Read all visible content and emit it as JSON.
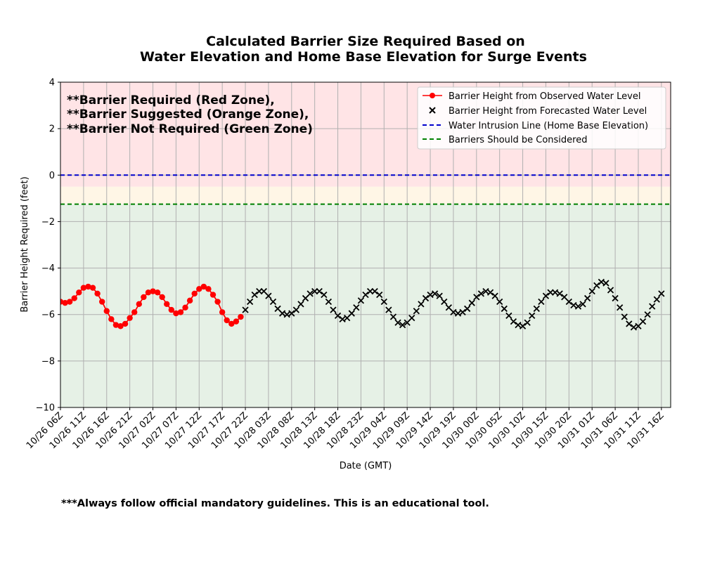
{
  "chart_data": {
    "type": "line",
    "title": [
      "Calculated Barrier Size Required Based on",
      "Water Elevation and Home Base Elevation for Surge Events"
    ],
    "xlabel": "Date (GMT)",
    "ylabel": "Barrier Height Required (feet)",
    "ylim": [
      -10,
      4
    ],
    "yticks": [
      -10,
      -8,
      -6,
      -4,
      -2,
      0,
      2,
      4
    ],
    "x_unit": "hours",
    "xlim": [
      0,
      132
    ],
    "x_tick_hours": [
      0,
      5,
      10,
      15,
      20,
      25,
      30,
      35,
      40,
      45,
      50,
      55,
      60,
      65,
      70,
      75,
      80,
      85,
      90,
      95,
      100,
      105,
      110,
      115,
      120,
      125,
      130
    ],
    "x_tick_labels": [
      "10/26 06Z",
      "10/26 11Z",
      "10/26 16Z",
      "10/26 21Z",
      "10/27 02Z",
      "10/27 07Z",
      "10/27 12Z",
      "10/27 17Z",
      "10/27 22Z",
      "10/28 03Z",
      "10/28 08Z",
      "10/28 13Z",
      "10/28 18Z",
      "10/28 23Z",
      "10/29 04Z",
      "10/29 09Z",
      "10/29 14Z",
      "10/29 19Z",
      "10/30 00Z",
      "10/30 05Z",
      "10/30 10Z",
      "10/30 15Z",
      "10/30 20Z",
      "10/31 01Z",
      "10/31 06Z",
      "10/31 11Z",
      "10/31 16Z"
    ],
    "grid": true,
    "zones": [
      {
        "name": "Barrier Required",
        "color": "#ffe4e6",
        "y0": -0.5,
        "y1": 4
      },
      {
        "name": "Barrier Suggested",
        "color": "#fff6e6",
        "y0": -1.25,
        "y1": -0.5
      },
      {
        "name": "Barrier Not Required",
        "color": "#e6f1e6",
        "y0": -10,
        "y1": -1.25
      }
    ],
    "hlines": [
      {
        "name": "Water Intrusion Line (Home Base Elevation)",
        "y": 0,
        "color": "#0000cc",
        "style": "dashed"
      },
      {
        "name": "Barriers Should be Considered",
        "y": -1.25,
        "color": "#008000",
        "style": "dashed"
      }
    ],
    "series": [
      {
        "name": "Barrier Height from Observed Water Level",
        "color": "#ff0000",
        "marker": "circle",
        "line": true,
        "x_start_hour": -5,
        "x_step_hours": 1,
        "values": [
          -5.3,
          -5.15,
          -5.05,
          -5.15,
          -5.35,
          -5.45,
          -5.5,
          -5.45,
          -5.3,
          -5.05,
          -4.85,
          -4.8,
          -4.85,
          -5.1,
          -5.45,
          -5.85,
          -6.2,
          -6.45,
          -6.5,
          -6.4,
          -6.15,
          -5.9,
          -5.55,
          -5.25,
          -5.05,
          -5.0,
          -5.05,
          -5.25,
          -5.55,
          -5.8,
          -5.95,
          -5.9,
          -5.7,
          -5.4,
          -5.1,
          -4.9,
          -4.8,
          -4.9,
          -5.15,
          -5.45,
          -5.9,
          -6.25,
          -6.4,
          -6.3,
          -6.1
        ]
      },
      {
        "name": "Barrier Height from Forecasted Water Level",
        "color": "#000000",
        "marker": "x",
        "line": false,
        "x_start_hour": 40,
        "x_step_hours": 1,
        "values": [
          -5.8,
          -5.45,
          -5.15,
          -5.0,
          -5.0,
          -5.2,
          -5.45,
          -5.75,
          -5.95,
          -6.0,
          -5.95,
          -5.8,
          -5.55,
          -5.3,
          -5.1,
          -5.0,
          -5.0,
          -5.15,
          -5.45,
          -5.8,
          -6.05,
          -6.2,
          -6.15,
          -5.95,
          -5.7,
          -5.4,
          -5.15,
          -5.0,
          -5.0,
          -5.15,
          -5.45,
          -5.8,
          -6.1,
          -6.35,
          -6.45,
          -6.35,
          -6.15,
          -5.85,
          -5.55,
          -5.3,
          -5.15,
          -5.1,
          -5.2,
          -5.45,
          -5.7,
          -5.9,
          -5.95,
          -5.9,
          -5.75,
          -5.5,
          -5.25,
          -5.1,
          -5.0,
          -5.05,
          -5.2,
          -5.45,
          -5.75,
          -6.05,
          -6.3,
          -6.45,
          -6.5,
          -6.35,
          -6.05,
          -5.75,
          -5.45,
          -5.2,
          -5.05,
          -5.05,
          -5.1,
          -5.25,
          -5.45,
          -5.6,
          -5.65,
          -5.55,
          -5.3,
          -5.0,
          -4.75,
          -4.6,
          -4.65,
          -4.95,
          -5.3,
          -5.7,
          -6.1,
          -6.4,
          -6.55,
          -6.5,
          -6.3,
          -6.0,
          -5.65,
          -5.35,
          -5.1
        ]
      }
    ],
    "legend_position": "top-right",
    "annotations": [
      "**Barrier Required (Red Zone),",
      "**Barrier Suggested (Orange Zone),",
      "**Barrier Not Required (Green Zone)"
    ]
  },
  "footnote": "***Always follow official mandatory guidelines. This is an educational tool."
}
